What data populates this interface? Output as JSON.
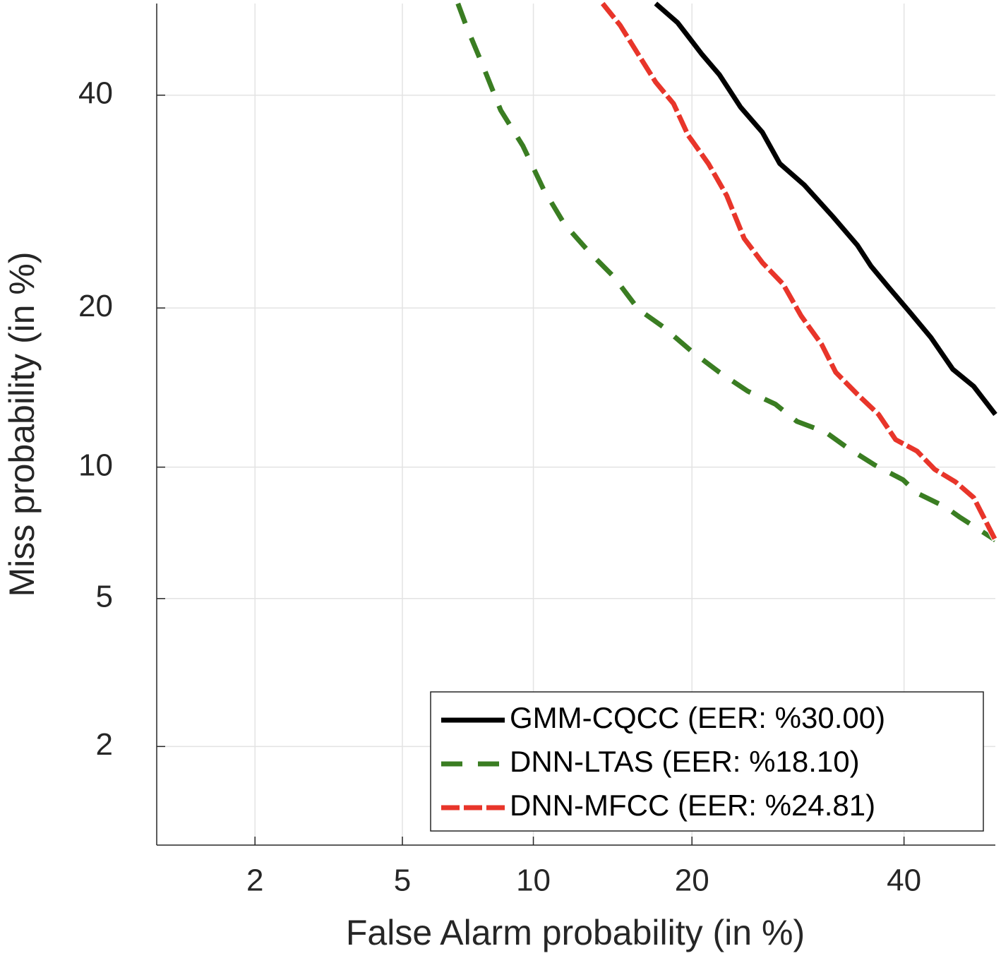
{
  "chart_data": {
    "type": "line",
    "xlabel": "False Alarm probability (in %)",
    "ylabel": "Miss probability (in %)",
    "xscale": "normal-deviate",
    "yscale": "normal-deviate",
    "xlim": [
      1,
      50
    ],
    "ylim": [
      1,
      50
    ],
    "xticks": [
      2,
      5,
      10,
      20,
      40
    ],
    "yticks": [
      2,
      5,
      10,
      20,
      40
    ],
    "grid": true,
    "legend_position": "southeast",
    "series": [
      {
        "name": "GMM-CQCC (EER: %30.00)",
        "color": "#000000",
        "dash": "solid",
        "x": [
          17.3,
          18.9,
          19.7,
          20.8,
          22.2,
          24.0,
          25.9,
          27.5,
          29.8,
          32.6,
          35.1,
          36.5,
          38.4,
          40.6,
          42.9,
          45.3,
          47.6,
          50
        ],
        "values": [
          50,
          47.9,
          46.4,
          44.4,
          42.2,
          38.7,
          36.1,
          32.9,
          30.8,
          27.8,
          25.2,
          23.4,
          21.6,
          19.7,
          17.8,
          15.6,
          14.5,
          12.8
        ]
      },
      {
        "name": "DNN-LTAS (EER: %18.10)",
        "color": "#3a7d22",
        "dash": "dashed",
        "x": [
          6.8,
          7.1,
          7.8,
          8.5,
          9.5,
          10.5,
          11.6,
          13.0,
          14.5,
          16.1,
          17.8,
          20.0,
          22.2,
          24.6,
          27.1,
          29.1,
          31.9,
          34.0,
          36.9,
          39.9,
          41.4,
          44.5,
          46.0,
          50
        ],
        "values": [
          50,
          47.6,
          42.9,
          38.4,
          34.7,
          30.4,
          27.1,
          24.6,
          22.5,
          19.9,
          18.6,
          16.8,
          15.4,
          14.2,
          13.4,
          12.4,
          11.8,
          11.0,
          10.1,
          9.4,
          8.8,
          8.2,
          7.8,
          6.9
        ]
      },
      {
        "name": "DNN-MFCC (EER: %24.81)",
        "color": "#e8352a",
        "dash": "dashed-white",
        "x": [
          13.8,
          14.9,
          16.1,
          17.3,
          18.6,
          19.7,
          21.3,
          22.8,
          24.3,
          25.9,
          27.8,
          29.5,
          31.5,
          32.9,
          35.1,
          37.3,
          39.1,
          41.4,
          43.3,
          45.6,
          47.6,
          50
        ],
        "values": [
          50,
          47.6,
          44.4,
          41.4,
          39.1,
          35.8,
          32.9,
          29.8,
          25.8,
          23.7,
          21.9,
          19.4,
          17.3,
          15.4,
          14.0,
          12.8,
          11.4,
          10.8,
          9.9,
          9.3,
          8.6,
          6.9
        ]
      }
    ]
  }
}
